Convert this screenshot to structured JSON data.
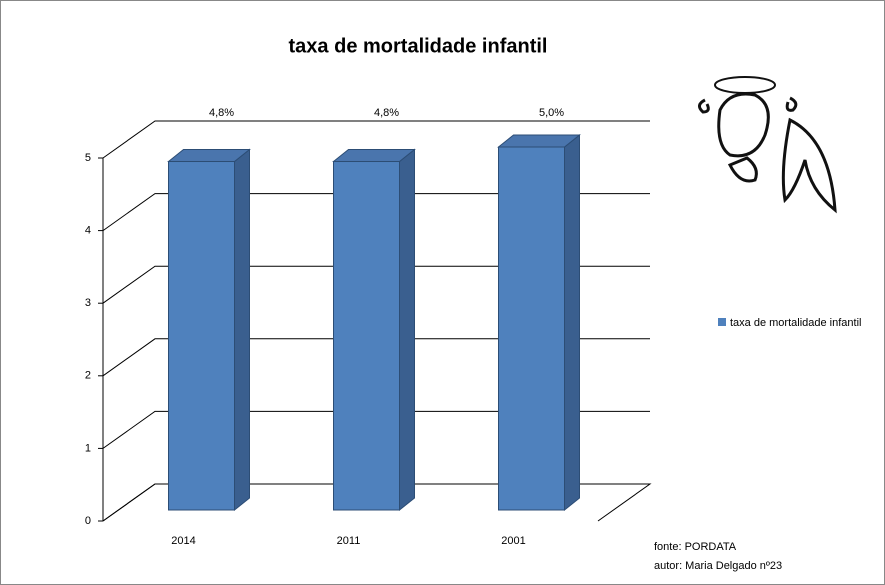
{
  "chart_data": {
    "type": "bar3d",
    "title": "taxa de mortalidade infantil",
    "categories": [
      "2014",
      "2011",
      "2001"
    ],
    "series": [
      {
        "name": "taxa de mortalidade infantil",
        "color": "#4f81bd",
        "values": [
          4.8,
          4.8,
          5.0
        ],
        "value_labels": [
          "4,8%",
          "4,8%",
          "5,0%"
        ]
      }
    ],
    "ylim": [
      0,
      5
    ],
    "yticks": [
      0,
      1,
      2,
      3,
      4,
      5
    ],
    "grid": true,
    "legend": "right",
    "annotations": [
      "fonte: PORDATA",
      "autor: Maria Delgado nº23"
    ]
  }
}
